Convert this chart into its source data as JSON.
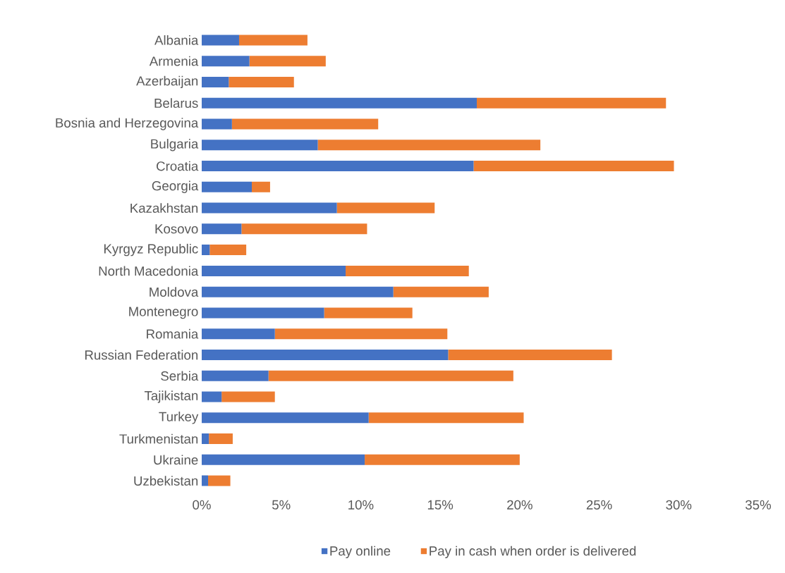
{
  "chart_data": {
    "type": "bar",
    "orientation": "horizontal",
    "stacked": true,
    "legend": "bottom",
    "categories": [
      "Albania",
      "Armenia",
      "Azerbaijan",
      "Belarus",
      "Bosnia and Herzegovina",
      "Bulgaria",
      "Croatia",
      "Georgia",
      "Kazakhstan",
      "Kosovo",
      "Kyrgyz Republic",
      "North Macedonia",
      "Moldova",
      "Montenegro",
      "Romania",
      "Russian Federation",
      "Serbia",
      "Tajikistan",
      "Turkey",
      "Turkmenistan",
      "Ukraine",
      "Uzbekistan"
    ],
    "series": [
      {
        "name": "Pay online",
        "color": "#4472c4",
        "values": [
          2.35,
          3.0,
          1.7,
          17.3,
          1.9,
          7.3,
          17.1,
          3.15,
          8.5,
          2.5,
          0.5,
          9.05,
          12.05,
          7.7,
          4.6,
          15.5,
          4.2,
          1.25,
          10.5,
          0.45,
          10.25,
          0.4
        ]
      },
      {
        "name": "Pay in cash when order is delivered",
        "color": "#ed7d31",
        "values": [
          4.3,
          4.8,
          4.1,
          11.9,
          9.2,
          14.0,
          12.6,
          1.15,
          6.15,
          7.9,
          2.3,
          7.75,
          6.0,
          5.55,
          10.85,
          10.3,
          15.4,
          3.35,
          9.75,
          1.5,
          9.75,
          1.4
        ]
      }
    ],
    "xlim": [
      0,
      35
    ],
    "xticks": [
      {
        "value": 0,
        "label": "0%"
      },
      {
        "value": 5,
        "label": "5%"
      },
      {
        "value": 10,
        "label": "10%"
      },
      {
        "value": 15,
        "label": "15%"
      },
      {
        "value": 20,
        "label": "20%"
      },
      {
        "value": 25,
        "label": "25%"
      },
      {
        "value": 30,
        "label": "30%"
      },
      {
        "value": 35,
        "label": "35%"
      }
    ]
  }
}
